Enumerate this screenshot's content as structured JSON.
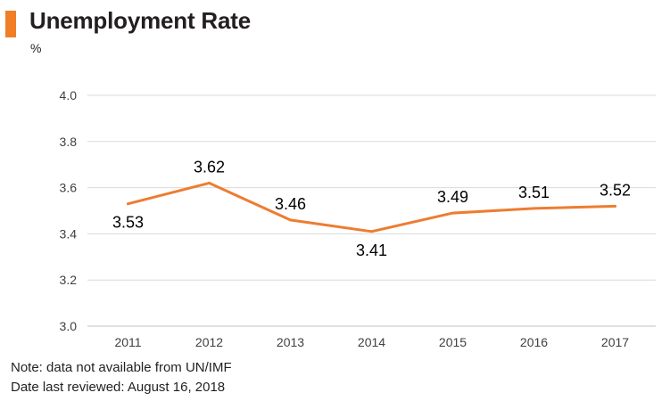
{
  "title": "Unemployment Rate",
  "unit_label": "%",
  "notes": {
    "line1": "Note: data not available from UN/IMF",
    "line2": "Date last reviewed: August 16, 2018"
  },
  "colors": {
    "accent": "#f07e26",
    "line": "#ed7d31",
    "grid": "#d9d9d9",
    "text": "#231f20",
    "tick_text": "#404040"
  },
  "chart_data": {
    "type": "line",
    "title": "Unemployment Rate",
    "ylabel": "%",
    "xlabel": "",
    "categories": [
      "2011",
      "2012",
      "2013",
      "2014",
      "2015",
      "2016",
      "2017"
    ],
    "series": [
      {
        "values": [
          3.53,
          3.62,
          3.46,
          3.41,
          3.49,
          3.51,
          3.52
        ]
      }
    ],
    "data_labels": [
      "3.53",
      "3.62",
      "3.46",
      "3.41",
      "3.49",
      "3.51",
      "3.52"
    ],
    "ylim": [
      3.0,
      4.0
    ],
    "yticks": [
      "3.0",
      "3.2",
      "3.4",
      "3.6",
      "3.8",
      "4.0"
    ],
    "grid": true,
    "legend": "none"
  }
}
